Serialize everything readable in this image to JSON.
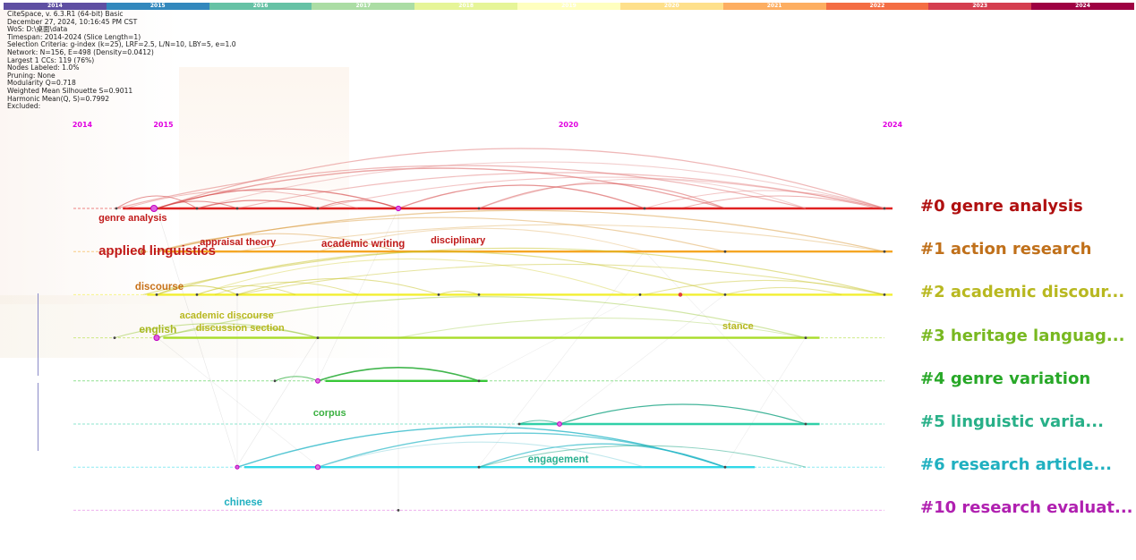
{
  "year_bar": [
    {
      "label": "2014",
      "color": "#5e4fa2"
    },
    {
      "label": "2015",
      "color": "#3288bd"
    },
    {
      "label": "2016",
      "color": "#66c2a5"
    },
    {
      "label": "2017",
      "color": "#abdda4"
    },
    {
      "label": "2018",
      "color": "#e6f598"
    },
    {
      "label": "2019",
      "color": "#ffffbf"
    },
    {
      "label": "2020",
      "color": "#fee08b"
    },
    {
      "label": "2021",
      "color": "#fdae61"
    },
    {
      "label": "2022",
      "color": "#f46d43"
    },
    {
      "label": "2023",
      "color": "#d53e4f"
    },
    {
      "label": "2024",
      "color": "#9e0142"
    }
  ],
  "meta_lines": [
    "CiteSpace, v. 6.3.R1 (64-bit) Basic",
    "December 27, 2024, 10:16:45 PM CST",
    "WoS: D:\\桌面\\data",
    "Timespan: 2014-2024 (Slice Length=1)",
    "Selection Criteria: g-index (k=25), LRF=2.5, L/N=10, LBY=5, e=1.0",
    "Network: N=156, E=498 (Density=0.0412)",
    "Largest 1 CCs: 119 (76%)",
    "Nodes Labeled: 1.0%",
    "Pruning: None",
    "Modularity Q=0.718",
    "Weighted Mean Silhouette S=0.9011",
    "Harmonic Mean(Q, S)=0.7992",
    "Excluded:"
  ],
  "timeline": {
    "start_year": 2014,
    "end_year": 2024,
    "year_labels": [
      "2014",
      "2015",
      "2020",
      "2024"
    ]
  },
  "clusters": [
    {
      "label": "#0 genre analysis",
      "color": "#b01010",
      "line_color": "#e02020"
    },
    {
      "label": "#1 action research",
      "color": "#c0701a",
      "line_color": "#f5a623"
    },
    {
      "label": "#2 academic discour...",
      "color": "#b8b820",
      "line_color": "#f2ef30"
    },
    {
      "label": "#3 heritage languag...",
      "color": "#78b820",
      "line_color": "#a8dc28"
    },
    {
      "label": "#4 genre variation",
      "color": "#28a828",
      "line_color": "#38c838"
    },
    {
      "label": "#5 linguistic varia...",
      "color": "#28b088",
      "line_color": "#30d0a8"
    },
    {
      "label": "#6 research article...",
      "color": "#20b0c0",
      "line_color": "#30d8e8"
    },
    {
      "label": "#10 research evaluat...",
      "color": "#b020b0",
      "line_color": "#e070e0"
    }
  ],
  "keywords": [
    {
      "text": "genre analysis",
      "year": 2014.2,
      "dy": 14,
      "size": 11,
      "color": "#c01a1a"
    },
    {
      "text": "applied linguistics",
      "year": 2014.2,
      "dy": 52,
      "size": 15,
      "color": "#c01a1a"
    },
    {
      "text": "appraisal theory",
      "year": 2015.45,
      "dy": 41,
      "size": 11,
      "color": "#c01a1a"
    },
    {
      "text": "academic writing",
      "year": 2016.95,
      "dy": 43,
      "size": 11.5,
      "color": "#c01a1a"
    },
    {
      "text": "disciplinary",
      "year": 2018.3,
      "dy": 39,
      "size": 11,
      "color": "#c01a1a"
    },
    {
      "text": "discourse",
      "year": 2014.65,
      "dy": 91,
      "size": 11.5,
      "color": "#c8721a"
    },
    {
      "text": "academic discourse",
      "year": 2015.2,
      "dy": 123,
      "size": 11,
      "color": "#b8b820"
    },
    {
      "text": "english",
      "year": 2014.7,
      "dy": 139,
      "size": 12,
      "color": "#a8b820"
    },
    {
      "text": "discussion section",
      "year": 2015.4,
      "dy": 137,
      "size": 11,
      "color": "#b8b820"
    },
    {
      "text": "stance",
      "year": 2021.9,
      "dy": 135,
      "size": 11,
      "color": "#b8b820"
    },
    {
      "text": "corpus",
      "year": 2016.85,
      "dy": 232,
      "size": 11,
      "color": "#3ab040"
    },
    {
      "text": "engagement",
      "year": 2019.5,
      "dy": 284,
      "size": 11.5,
      "color": "#2ab090"
    },
    {
      "text": "chinese",
      "year": 2015.75,
      "dy": 332,
      "size": 11.5,
      "color": "#20b0c0"
    }
  ]
}
